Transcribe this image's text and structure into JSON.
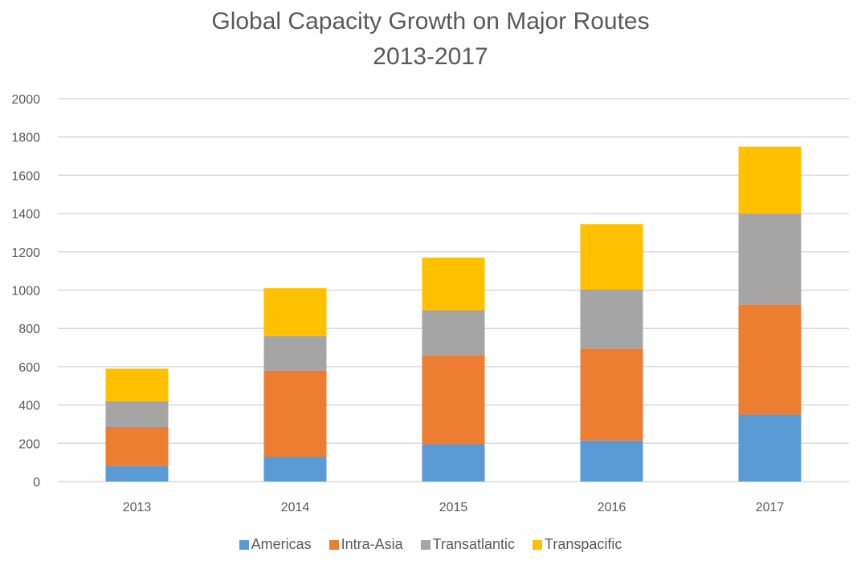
{
  "chart_data": {
    "type": "bar",
    "stacked": true,
    "title": "Global Capacity Growth on Major Routes",
    "subtitle": "2013-2017",
    "xlabel": "",
    "ylabel": "",
    "categories": [
      "2013",
      "2014",
      "2015",
      "2016",
      "2017"
    ],
    "ylim": [
      0,
      2000
    ],
    "yticks": [
      0,
      200,
      400,
      600,
      800,
      1000,
      1200,
      1400,
      1600,
      1800,
      2000
    ],
    "ytick_labels": [
      "0",
      "200",
      "400",
      "600",
      "800",
      "1000",
      "1200",
      "1400",
      "1600",
      "1800",
      "2000"
    ],
    "grid": true,
    "legend_position": "bottom",
    "series": [
      {
        "name": "Americas",
        "color": "#5b9bd5",
        "values": [
          80,
          130,
          195,
          215,
          350
        ]
      },
      {
        "name": "Intra-Asia",
        "color": "#ed7d31",
        "values": [
          205,
          450,
          465,
          480,
          575
        ]
      },
      {
        "name": "Transatlantic",
        "color": "#a5a5a5",
        "values": [
          135,
          180,
          235,
          310,
          475
        ]
      },
      {
        "name": "Transpacific",
        "color": "#ffc000",
        "values": [
          170,
          250,
          275,
          340,
          350
        ]
      }
    ]
  }
}
